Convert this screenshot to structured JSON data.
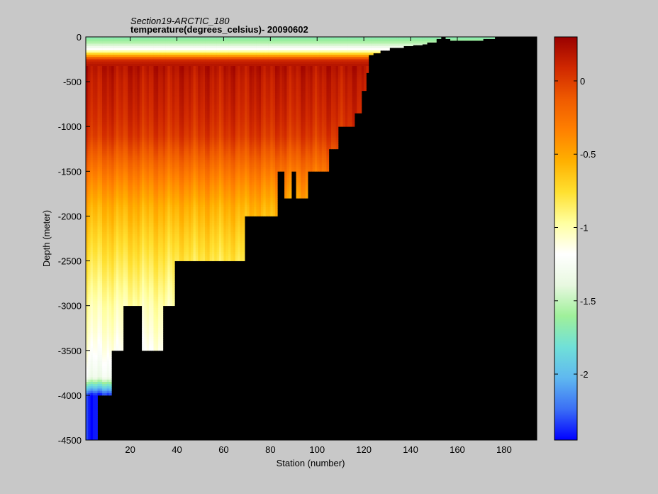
{
  "chart_data": {
    "type": "heatmap",
    "title": "Section19-ARCTIC_180",
    "subtitle": "temperature(degrees_celsius)- 20090602",
    "xlabel": "Station (number)",
    "ylabel": "Depth (meter)",
    "xlim": [
      1,
      194
    ],
    "ylim": [
      -4500,
      0
    ],
    "x_ticks": [
      20,
      40,
      60,
      80,
      100,
      120,
      140,
      160,
      180
    ],
    "y_ticks": [
      0,
      -500,
      -1000,
      -1500,
      -2000,
      -2500,
      -3000,
      -3500,
      -4000,
      -4500
    ],
    "colorbar": {
      "range": [
        -2.45,
        0.3
      ],
      "ticks": [
        0,
        -0.5,
        -1,
        -1.5,
        -2
      ],
      "colormap": [
        "#0000ff",
        "#3b6ff5",
        "#5fb8f0",
        "#70e0d8",
        "#9ff09a",
        "#e8f8e0",
        "#ffffff",
        "#ffffa0",
        "#ffe030",
        "#ffb000",
        "#ff8000",
        "#ef5a00",
        "#d02800",
        "#9a0000"
      ]
    },
    "missing_color": "#000000",
    "bathymetry": {
      "station": [
        1,
        4,
        5,
        10,
        11,
        15,
        16,
        23,
        24,
        32,
        33,
        35,
        38,
        45,
        50,
        58,
        64,
        68,
        70,
        74,
        78,
        82,
        85,
        88,
        90,
        95,
        100,
        104,
        108,
        112,
        115,
        118,
        120,
        121,
        123,
        126,
        130,
        136,
        140,
        144,
        146,
        150,
        152,
        154,
        156,
        160,
        166,
        170,
        175,
        180,
        186,
        194
      ],
      "depth": [
        -4500,
        -4500,
        -4000,
        -4000,
        -3500,
        -3500,
        -3000,
        -3000,
        -3500,
        -3500,
        -3000,
        -3000,
        -2500,
        -2500,
        -2500,
        -2500,
        -2500,
        -2000,
        -2000,
        -2000,
        -2000,
        -1500,
        -1800,
        -1500,
        -1800,
        -1500,
        -1500,
        -1250,
        -1000,
        -1000,
        -850,
        -600,
        -400,
        -200,
        -180,
        -150,
        -120,
        -100,
        -90,
        -80,
        -60,
        -20,
        0,
        -20,
        -40,
        -40,
        -40,
        -20,
        0,
        0,
        0,
        0
      ]
    },
    "profile": {
      "depth": [
        0,
        -50,
        -100,
        -150,
        -200,
        -250,
        -300,
        -350,
        -400,
        -500,
        -700,
        -900,
        -1100,
        -1300,
        -1500,
        -1700,
        -1900,
        -2200,
        -2500,
        -2800,
        -3000,
        -3300,
        -3500,
        -3800,
        -4000,
        -4300,
        -4500
      ],
      "temperature": [
        -1.7,
        -1.6,
        -1.4,
        -1.1,
        -0.6,
        0.05,
        0.18,
        0.2,
        0.18,
        0.15,
        0.12,
        0.08,
        0.02,
        -0.12,
        -0.28,
        -0.42,
        -0.55,
        -0.68,
        -0.8,
        -0.92,
        -1.0,
        -1.08,
        -1.15,
        -1.3,
        -2.4,
        -2.4,
        -2.4
      ]
    }
  }
}
